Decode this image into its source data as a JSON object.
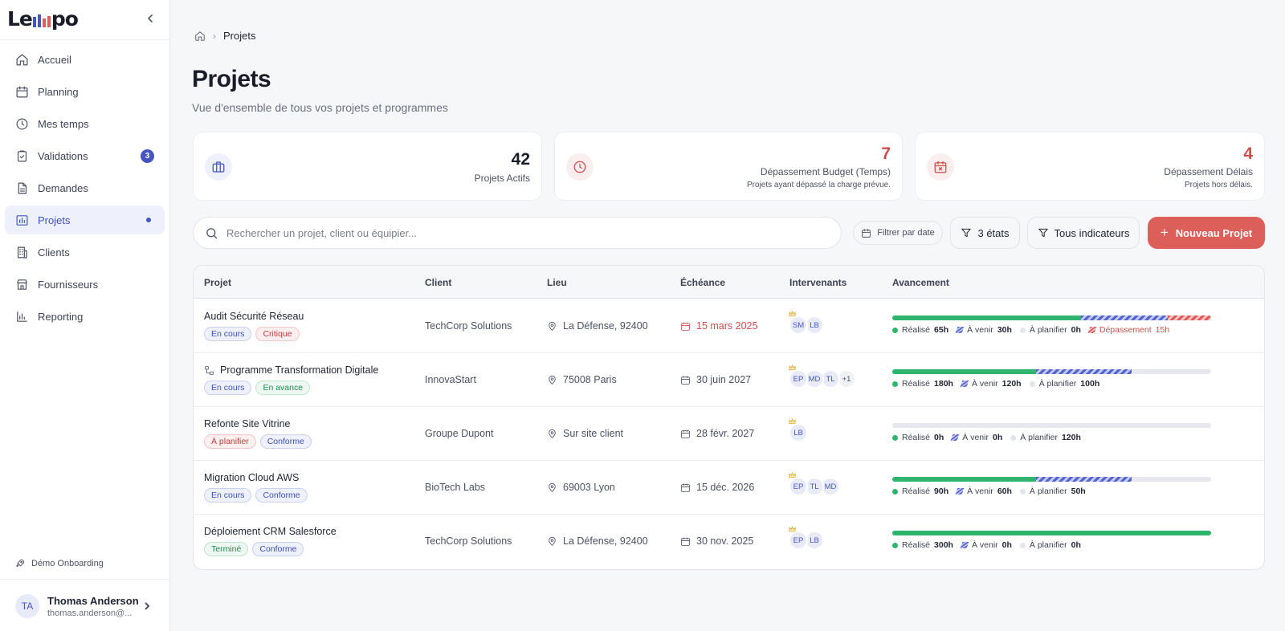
{
  "app": {
    "logo_left": "Le",
    "logo_right": "po",
    "logo_bar_colors": [
      "#4556c0",
      "#4556c0",
      "#dc5f5a",
      "#dc5f5a"
    ]
  },
  "sidebar": {
    "items": [
      {
        "label": "Accueil",
        "icon": "home-icon"
      },
      {
        "label": "Planning",
        "icon": "calendar-icon"
      },
      {
        "label": "Mes temps",
        "icon": "clock-icon"
      },
      {
        "label": "Validations",
        "icon": "clipboard-check-icon",
        "badge": "3"
      },
      {
        "label": "Demandes",
        "icon": "file-text-icon"
      },
      {
        "label": "Projets",
        "icon": "project-chart-icon",
        "active": true
      },
      {
        "label": "Clients",
        "icon": "building-icon"
      },
      {
        "label": "Fournisseurs",
        "icon": "store-icon"
      },
      {
        "label": "Reporting",
        "icon": "bar-chart-icon"
      }
    ],
    "demo_label": "Démo Onboarding",
    "user": {
      "initials": "TA",
      "name": "Thomas Anderson",
      "email": "thomas.anderson@..."
    }
  },
  "breadcrumb": {
    "current": "Projets"
  },
  "header": {
    "title": "Projets",
    "subtitle": "Vue d'ensemble de tous vos projets et programmes"
  },
  "stats": [
    {
      "value": "42",
      "label": "Projets Actifs",
      "desc": "",
      "color": "#1a1d29",
      "icon": "briefcase-icon"
    },
    {
      "value": "7",
      "label": "Dépassement Budget (Temps)",
      "desc": "Projets ayant dépassé la charge prévue.",
      "color": "#d14c4c",
      "icon": "clock-alert-icon"
    },
    {
      "value": "4",
      "label": "Dépassement Délais",
      "desc": "Projets hors délais.",
      "color": "#d14c4c",
      "icon": "calendar-x-icon"
    }
  ],
  "toolbar": {
    "search_placeholder": "Rechercher un projet, client ou équipier...",
    "date_filter": "Filtrer par date",
    "states_filter": "3 états",
    "indicators_filter": "Tous indicateurs",
    "new_project": "Nouveau Projet"
  },
  "table": {
    "headers": [
      "Projet",
      "Client",
      "Lieu",
      "Échéance",
      "Intervenants",
      "Avancement"
    ],
    "legend_labels": {
      "done": "Réalisé",
      "upcoming": "À venir",
      "planned": "À planifier",
      "overrun": "Dépassement"
    },
    "rows": [
      {
        "name": "Audit Sécurité Réseau",
        "program": false,
        "tags": [
          {
            "label": "En cours",
            "kind": "blue"
          },
          {
            "label": "Critique",
            "kind": "red"
          }
        ],
        "client": "TechCorp Solutions",
        "location": "La Défense, 92400",
        "deadline": "15 mars 2025",
        "deadline_late": true,
        "people": [
          "SM",
          "LB"
        ],
        "hours": {
          "done": 65,
          "upcoming": 30,
          "planned": 0,
          "overrun": 15
        },
        "labels": {
          "done": "65h",
          "upcoming": "30h",
          "planned": "0h",
          "overrun": "15h"
        }
      },
      {
        "name": "Programme Transformation Digitale",
        "program": true,
        "tags": [
          {
            "label": "En cours",
            "kind": "blue"
          },
          {
            "label": "En avance",
            "kind": "green"
          }
        ],
        "client": "InnovaStart",
        "location": "75008 Paris",
        "deadline": "30 juin 2027",
        "deadline_late": false,
        "people": [
          "EP",
          "MD",
          "TL",
          "+1"
        ],
        "hours": {
          "done": 180,
          "upcoming": 120,
          "planned": 100
        },
        "labels": {
          "done": "180h",
          "upcoming": "120h",
          "planned": "100h"
        }
      },
      {
        "name": "Refonte Site Vitrine",
        "program": false,
        "tags": [
          {
            "label": "À planifier",
            "kind": "red"
          },
          {
            "label": "Conforme",
            "kind": "blue"
          }
        ],
        "client": "Groupe Dupont",
        "location": "Sur site client",
        "deadline": "28 févr. 2027",
        "deadline_late": false,
        "people": [
          "LB"
        ],
        "hours": {
          "done": 0,
          "upcoming": 0,
          "planned": 120
        },
        "labels": {
          "done": "0h",
          "upcoming": "0h",
          "planned": "120h"
        }
      },
      {
        "name": "Migration Cloud AWS",
        "program": false,
        "tags": [
          {
            "label": "En cours",
            "kind": "blue"
          },
          {
            "label": "Conforme",
            "kind": "blue"
          }
        ],
        "client": "BioTech Labs",
        "location": "69003 Lyon",
        "deadline": "15 déc. 2026",
        "deadline_late": false,
        "people": [
          "EP",
          "TL",
          "MD"
        ],
        "hours": {
          "done": 90,
          "upcoming": 60,
          "planned": 50
        },
        "labels": {
          "done": "90h",
          "upcoming": "60h",
          "planned": "50h"
        }
      },
      {
        "name": "Déploiement CRM Salesforce",
        "program": false,
        "tags": [
          {
            "label": "Terminé",
            "kind": "green"
          },
          {
            "label": "Conforme",
            "kind": "blue"
          }
        ],
        "client": "TechCorp Solutions",
        "location": "La Défense, 92400",
        "deadline": "30 nov. 2025",
        "deadline_late": false,
        "people": [
          "EP",
          "LB"
        ],
        "hours": {
          "done": 300,
          "upcoming": 0,
          "planned": 0
        },
        "labels": {
          "done": "300h",
          "upcoming": "0h",
          "planned": "0h"
        }
      }
    ]
  }
}
